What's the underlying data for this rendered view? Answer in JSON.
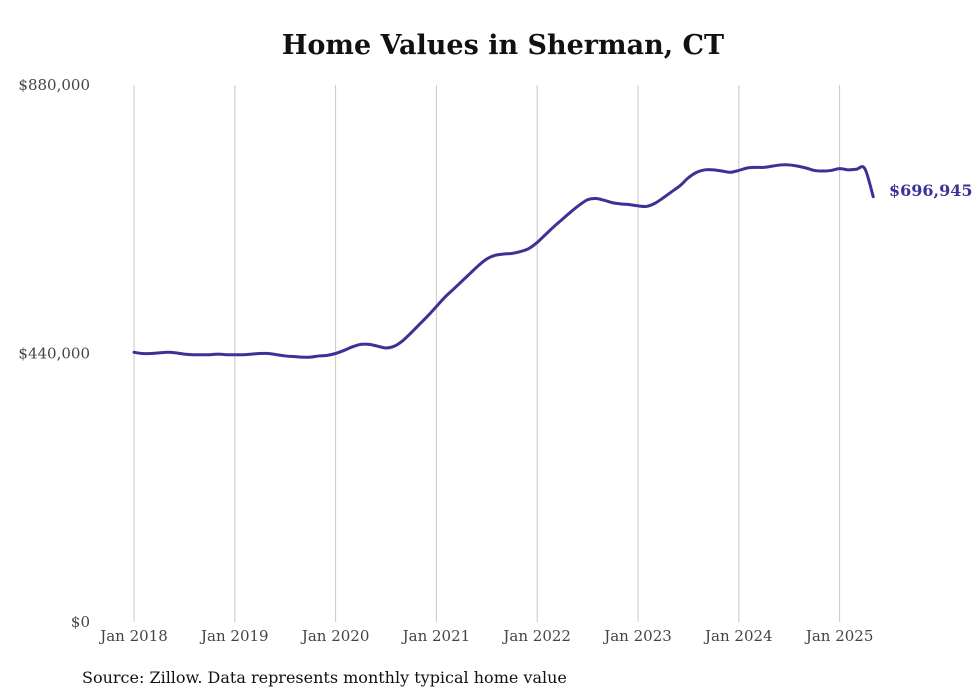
{
  "chart_data": {
    "type": "line",
    "title": "Home Values in Sherman, CT",
    "xlabel": "",
    "ylabel": "",
    "ylim": [
      0,
      880000
    ],
    "y_ticks": [
      "$0",
      "$440,000",
      "$880,000"
    ],
    "y_tick_values": [
      0,
      440000,
      880000
    ],
    "x_tick_labels": [
      "Jan 2018",
      "Jan 2019",
      "Jan 2020",
      "Jan 2021",
      "Jan 2022",
      "Jan 2023",
      "Jan 2024",
      "Jan 2025"
    ],
    "x_range": [
      "2018-01",
      "2025-05"
    ],
    "grid": "vertical",
    "color": "#3b3296",
    "end_label": "$696,945",
    "series": [
      {
        "x": [
          "2018-01",
          "2018-02",
          "2018-03",
          "2018-04",
          "2018-05",
          "2018-06",
          "2018-07",
          "2018-08",
          "2018-09",
          "2018-10",
          "2018-11",
          "2018-12",
          "2019-01",
          "2019-02",
          "2019-03",
          "2019-04",
          "2019-05",
          "2019-06",
          "2019-07",
          "2019-08",
          "2019-09",
          "2019-10",
          "2019-11",
          "2019-12",
          "2020-01",
          "2020-02",
          "2020-03",
          "2020-04",
          "2020-05",
          "2020-06",
          "2020-07",
          "2020-08",
          "2020-09",
          "2020-10",
          "2020-11",
          "2020-12",
          "2021-01",
          "2021-02",
          "2021-03",
          "2021-04",
          "2021-05",
          "2021-06",
          "2021-07",
          "2021-08",
          "2021-09",
          "2021-10",
          "2021-11",
          "2021-12",
          "2022-01",
          "2022-02",
          "2022-03",
          "2022-04",
          "2022-05",
          "2022-06",
          "2022-07",
          "2022-08",
          "2022-09",
          "2022-10",
          "2022-11",
          "2022-12",
          "2023-01",
          "2023-02",
          "2023-03",
          "2023-04",
          "2023-05",
          "2023-06",
          "2023-07",
          "2023-08",
          "2023-09",
          "2023-10",
          "2023-11",
          "2023-12",
          "2024-01",
          "2024-02",
          "2024-03",
          "2024-04",
          "2024-05",
          "2024-06",
          "2024-07",
          "2024-08",
          "2024-09",
          "2024-10",
          "2024-11",
          "2024-12",
          "2025-01",
          "2025-02",
          "2025-03",
          "2025-04",
          "2025-05"
        ],
        "values": [
          442000,
          440000,
          440000,
          441000,
          442000,
          441000,
          439000,
          438000,
          438000,
          438000,
          439000,
          438000,
          438000,
          438000,
          439000,
          440000,
          440000,
          438000,
          436000,
          435000,
          434000,
          434000,
          436000,
          437000,
          440000,
          445000,
          451000,
          455000,
          455000,
          452000,
          449000,
          452000,
          461000,
          474000,
          488000,
          502000,
          517000,
          532000,
          545000,
          558000,
          571000,
          584000,
          595000,
          601000,
          603000,
          604000,
          607000,
          612000,
          622000,
          635000,
          648000,
          660000,
          672000,
          683000,
          692000,
          694000,
          691000,
          687000,
          685000,
          684000,
          682000,
          681000,
          686000,
          695000,
          705000,
          715000,
          728000,
          737000,
          741000,
          741000,
          739000,
          737000,
          740000,
          744000,
          745000,
          745000,
          747000,
          749000,
          749000,
          747000,
          744000,
          740000,
          739000,
          740000,
          743000,
          741000,
          742000,
          743000,
          697000
        ]
      }
    ]
  },
  "source_note": "Source: Zillow. Data represents monthly typical home value"
}
